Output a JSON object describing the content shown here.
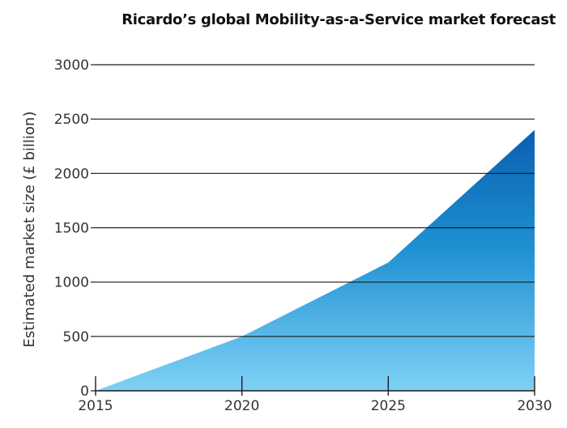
{
  "chart_data": {
    "type": "area",
    "title": "Ricardo’s global Mobility-as-a-Service market forecast",
    "xlabel": "",
    "ylabel": "Estimated market size (£ billion)",
    "x": [
      2015,
      2020,
      2025,
      2030
    ],
    "values": [
      0,
      500,
      1180,
      2400
    ],
    "xlim": [
      2015,
      2030
    ],
    "ylim": [
      0,
      3000
    ],
    "yticks": [
      0,
      500,
      1000,
      1500,
      2000,
      2500,
      3000
    ],
    "xticks": [
      2015,
      2020,
      2025,
      2030
    ],
    "grid": "horizontal",
    "legend": "none",
    "colors": {
      "fill_top": "#0a5fb0",
      "fill_mid": "#1e90d2",
      "fill_bottom": "#7fd1f5",
      "gridline": "#1a1a1a",
      "axis": "#1a1a1a",
      "text": "#333333"
    }
  }
}
